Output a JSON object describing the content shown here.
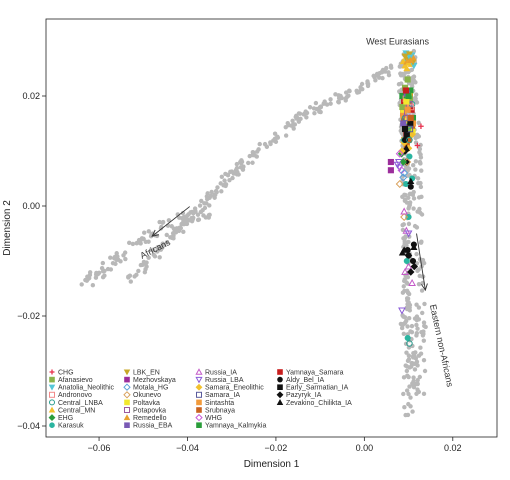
{
  "chart_data": {
    "type": "scatter",
    "xlabel": "Dimension 1",
    "ylabel": "Dimension 2",
    "xlim": [
      -0.072,
      0.03
    ],
    "ylim": [
      -0.042,
      0.034
    ],
    "xticks": [
      -0.06,
      -0.04,
      -0.02,
      0.0,
      0.02
    ],
    "xtick_labels": [
      "−0.06",
      "−0.04",
      "−0.02",
      "0.00",
      "0.02"
    ],
    "yticks": [
      -0.04,
      -0.02,
      0.0,
      0.02
    ],
    "ytick_labels": [
      "−0.04",
      "−0.02",
      "0.00",
      "0.02"
    ],
    "grid": false,
    "legend_position": "bottom-left",
    "annotations": [
      {
        "text": "West Eurasians",
        "x": 0.0075,
        "y": 0.0294
      },
      {
        "text": "Africans",
        "x": -0.047,
        "y": -0.0083,
        "rotate": -27
      },
      {
        "text": "Eastern non-Africans",
        "x": 0.0168,
        "y": -0.0255,
        "rotate": 78
      }
    ],
    "arrows": [
      {
        "from": [
          -0.0395,
          -0.0001
        ],
        "to": [
          -0.048,
          -0.0055
        ]
      },
      {
        "from": [
          0.0118,
          -0.005
        ],
        "to": [
          0.0138,
          -0.0153
        ]
      }
    ],
    "background_series": {
      "name": "",
      "color": "#b8b8b8",
      "segments": [
        {
          "from": [
            -0.053,
            -0.0135
          ],
          "to": [
            -0.04,
            -0.0025
          ],
          "n": 55,
          "jitter": 0.0009
        },
        {
          "from": [
            -0.04,
            -0.0025
          ],
          "to": [
            -0.03,
            0.0055
          ],
          "n": 45,
          "jitter": 0.001
        },
        {
          "from": [
            -0.03,
            0.0055
          ],
          "to": [
            -0.015,
            0.016
          ],
          "n": 55,
          "jitter": 0.001
        },
        {
          "from": [
            -0.015,
            0.016
          ],
          "to": [
            0.0,
            0.022
          ],
          "n": 50,
          "jitter": 0.001
        },
        {
          "from": [
            0.0,
            0.022
          ],
          "to": [
            0.008,
            0.026
          ],
          "n": 25,
          "jitter": 0.0008
        },
        {
          "from": [
            -0.064,
            -0.0145
          ],
          "to": [
            -0.045,
            -0.003
          ],
          "n": 60,
          "jitter": 0.0011
        },
        {
          "from": [
            -0.045,
            -0.003
          ],
          "to": [
            -0.034,
            -0.001
          ],
          "n": 25,
          "jitter": 0.0012
        },
        {
          "from": [
            0.0085,
            0.027
          ],
          "to": [
            0.0095,
            0.001
          ],
          "n": 90,
          "jitter": 0.0009
        },
        {
          "from": [
            0.0095,
            0.001
          ],
          "to": [
            0.0095,
            -0.02
          ],
          "n": 55,
          "jitter": 0.0009
        },
        {
          "from": [
            0.0095,
            -0.02
          ],
          "to": [
            0.012,
            -0.034
          ],
          "n": 45,
          "jitter": 0.0009
        },
        {
          "from": [
            0.009,
            -0.02
          ],
          "to": [
            0.01,
            -0.038
          ],
          "n": 25,
          "jitter": 0.001
        },
        {
          "from": [
            0.0105,
            0.028
          ],
          "to": [
            0.012,
            0.008
          ],
          "n": 60,
          "jitter": 0.001
        },
        {
          "from": [
            0.012,
            0.008
          ],
          "to": [
            0.013,
            -0.034
          ],
          "n": 70,
          "jitter": 0.0012
        }
      ]
    },
    "legend": [
      {
        "label": "CHG",
        "marker": "plus",
        "color": "#e8334f",
        "x": 0.012,
        "y": 0.011
      },
      {
        "label": "Afanasievo",
        "marker": "square",
        "color": "#8ab34a",
        "x": 0.0098,
        "y": 0.023
      },
      {
        "label": "Anatolia_Neolithic",
        "marker": "triangle-down",
        "color": "#56c7d8",
        "x": 0.0103,
        "y": 0.027
      },
      {
        "label": "Andronovo",
        "marker": "square-open",
        "color": "#f28a8a",
        "x": 0.0105,
        "y": 0.018
      },
      {
        "label": "Central_LNBA",
        "marker": "circle-open",
        "color": "#2a9d8f",
        "x": 0.0102,
        "y": 0.012
      },
      {
        "label": "Central_MN",
        "marker": "triangle",
        "color": "#f2c12e",
        "x": 0.01,
        "y": 0.026
      },
      {
        "label": "EHG",
        "marker": "diamond",
        "color": "#2a9d3a",
        "x": 0.0088,
        "y": 0.008
      },
      {
        "label": "Karasuk",
        "marker": "circle",
        "color": "#2bb5a0",
        "x": 0.0096,
        "y": -0.01
      },
      {
        "label": "LBK_EN",
        "marker": "triangle-down",
        "color": "#c8a828",
        "x": 0.0092,
        "y": 0.0272
      },
      {
        "label": "Mezhovskaya",
        "marker": "square",
        "color": "#9b2d9b",
        "x": 0.006,
        "y": 0.0065
      },
      {
        "label": "Motala_HG",
        "marker": "diamond-open",
        "color": "#5aa0d8",
        "x": 0.009,
        "y": 0.006
      },
      {
        "label": "Okunevo",
        "marker": "diamond-open",
        "color": "#d8a05a",
        "x": 0.008,
        "y": 0.004
      },
      {
        "label": "Poltavka",
        "marker": "square",
        "color": "#f2e82e",
        "x": 0.0095,
        "y": 0.019
      },
      {
        "label": "Potapovka",
        "marker": "square-open",
        "color": "#9b5aa0",
        "x": 0.0097,
        "y": 0.017
      },
      {
        "label": "Remedello",
        "marker": "triangle",
        "color": "#e8a030",
        "x": 0.0104,
        "y": 0.0265
      },
      {
        "label": "Russia_EBA",
        "marker": "square",
        "color": "#7a5ab4",
        "x": 0.0088,
        "y": 0.015
      },
      {
        "label": "Russia_IA",
        "marker": "triangle-open",
        "color": "#c45ac8",
        "x": 0.009,
        "y": -0.001
      },
      {
        "label": "Russia_LBA",
        "marker": "triangle-down-open",
        "color": "#8a5ad8",
        "x": 0.0075,
        "y": 0.0075
      },
      {
        "label": "Samara_Eneolithic",
        "marker": "diamond",
        "color": "#f2c12e",
        "x": 0.0085,
        "y": 0.01
      },
      {
        "label": "Samara_IA",
        "marker": "square-open",
        "color": "#5a5a9b",
        "x": 0.0103,
        "y": 0.014
      },
      {
        "label": "Sintashta",
        "marker": "square",
        "color": "#f29a3a",
        "x": 0.0098,
        "y": 0.0175
      },
      {
        "label": "Srubnaya",
        "marker": "square",
        "color": "#c8621e",
        "x": 0.0105,
        "y": 0.016
      },
      {
        "label": "WHG",
        "marker": "diamond-open",
        "color": "#c85ad8",
        "x": 0.008,
        "y": 0.0095
      },
      {
        "label": "Yamnaya_Kalmykia",
        "marker": "square",
        "color": "#2a9d3a",
        "x": 0.01,
        "y": 0.02
      },
      {
        "label": "Yamnaya_Samara",
        "marker": "square",
        "color": "#c81e1e",
        "x": 0.0094,
        "y": 0.021
      },
      {
        "label": "Aldy_Bel_IA",
        "marker": "circle",
        "color": "#111111",
        "x": 0.01,
        "y": -0.009
      },
      {
        "label": "Early_Sarmatian_IA",
        "marker": "square",
        "color": "#111111",
        "x": 0.0092,
        "y": 0.014
      },
      {
        "label": "Pazyryk_IA",
        "marker": "diamond",
        "color": "#111111",
        "x": 0.0105,
        "y": -0.012
      },
      {
        "label": "Zevakino_Chilikta_IA",
        "marker": "triangle",
        "color": "#111111",
        "x": 0.009,
        "y": -0.008
      }
    ],
    "extra_points": [
      {
        "group": "Yamnaya_Samara",
        "x": [
          0.009,
          0.0097,
          0.0103,
          0.0088,
          0.0095,
          0.0107
        ],
        "y": [
          0.019,
          0.015,
          0.02,
          0.017,
          0.013,
          0.0175
        ]
      },
      {
        "group": "Yamnaya_Kalmykia",
        "x": [
          0.0092,
          0.0104,
          0.011,
          0.0086
        ],
        "y": [
          0.018,
          0.021,
          0.016,
          0.02
        ]
      },
      {
        "group": "Srubnaya",
        "x": [
          0.0094,
          0.01,
          0.009,
          0.0108,
          0.0096,
          0.0102
        ],
        "y": [
          0.014,
          0.012,
          0.016,
          0.0145,
          0.011,
          0.019
        ]
      },
      {
        "group": "Sintashta",
        "x": [
          0.0088,
          0.0095,
          0.011,
          0.009
        ],
        "y": [
          0.0165,
          0.0185,
          0.015,
          0.012
        ]
      },
      {
        "group": "Poltavka",
        "x": [
          0.0088,
          0.0102,
          0.0098,
          0.0109
        ],
        "y": [
          0.0175,
          0.02,
          0.0155,
          0.0135
        ]
      },
      {
        "group": "Afanasievo",
        "x": [
          0.0092,
          0.0103,
          0.0086,
          0.0099
        ],
        "y": [
          0.0215,
          0.0195,
          0.018,
          0.014
        ]
      },
      {
        "group": "Central_MN",
        "x": [
          0.0092,
          0.0098,
          0.0106,
          0.0096,
          0.011,
          0.0088
        ],
        "y": [
          0.0255,
          0.0272,
          0.0258,
          0.025,
          0.0268,
          0.0263
        ]
      },
      {
        "group": "Anatolia_Neolithic",
        "x": [
          0.0098,
          0.0108,
          0.0094,
          0.0112
        ],
        "y": [
          0.0262,
          0.0274,
          0.0278,
          0.0255
        ]
      },
      {
        "group": "LBK_EN",
        "x": [
          0.0102,
          0.0097,
          0.011
        ],
        "y": [
          0.0276,
          0.0266,
          0.0262
        ]
      },
      {
        "group": "Remedello",
        "x": [
          0.0096,
          0.011
        ],
        "y": [
          0.0262,
          0.027
        ]
      },
      {
        "group": "EHG",
        "x": [
          0.0084,
          0.009,
          0.0102
        ],
        "y": [
          0.0095,
          0.012,
          0.013
        ]
      },
      {
        "group": "Samara_Eneolithic",
        "x": [
          0.009,
          0.01,
          0.0108
        ],
        "y": [
          0.0115,
          0.0105,
          0.013
        ]
      },
      {
        "group": "Karasuk",
        "x": [
          0.009,
          0.0102,
          0.0094,
          0.01,
          0.0108,
          0.0098
        ],
        "y": [
          0.012,
          0.009,
          0.004,
          -0.002,
          0.005,
          -0.024
        ]
      },
      {
        "group": "Central_LNBA",
        "x": [
          0.0092,
          0.01,
          0.0108
        ],
        "y": [
          0.016,
          0.0145,
          0.0185
        ]
      },
      {
        "group": "Andronovo",
        "x": [
          0.0094,
          0.0102
        ],
        "y": [
          0.0195,
          0.016
        ]
      },
      {
        "group": "Russia_EBA",
        "x": [
          0.0096
        ],
        "y": [
          0.0205
        ]
      },
      {
        "group": "Russia_IA",
        "x": [
          0.0095,
          0.01,
          0.0092,
          0.0108
        ],
        "y": [
          -0.0045,
          -0.011,
          -0.012,
          -0.014
        ]
      },
      {
        "group": "Russia_LBA",
        "x": [
          0.008,
          0.01,
          0.0085,
          0.0078
        ],
        "y": [
          0.007,
          -0.005,
          -0.019,
          0.008
        ]
      },
      {
        "group": "Aldy_Bel_IA",
        "x": [
          0.0092,
          0.0105,
          0.0112,
          0.0098,
          0.011
        ],
        "y": [
          0.012,
          0.0035,
          -0.007,
          -0.008,
          -0.01
        ]
      },
      {
        "group": "Early_Sarmatian_IA",
        "x": [
          0.0096,
          0.0104
        ],
        "y": [
          0.013,
          0.015
        ]
      },
      {
        "group": "Pazyryk_IA",
        "x": [
          0.0092,
          0.01,
          0.0113,
          0.0095
        ],
        "y": [
          0.01,
          -0.009,
          -0.011,
          0.008
        ]
      },
      {
        "group": "Zevakino_Chilikta_IA",
        "x": [
          0.0095,
          0.0105,
          0.0112,
          0.0086
        ],
        "y": [
          0.0105,
          0.0045,
          -0.0075,
          -0.0085
        ]
      },
      {
        "group": "Mezhovskaya",
        "x": [
          0.006
        ],
        "y": [
          0.008
        ]
      },
      {
        "group": "Okunevo",
        "x": [
          0.009,
          0.0097
        ],
        "y": [
          -0.002,
          0.008
        ]
      },
      {
        "group": "WHG",
        "x": [
          0.0084
        ],
        "y": [
          0.0065
        ]
      },
      {
        "group": "Motala_HG",
        "x": [
          0.0088
        ],
        "y": [
          0.0052
        ]
      },
      {
        "group": "CHG",
        "x": [
          0.0128
        ],
        "y": [
          0.0145
        ]
      },
      {
        "group": "Samara_IA",
        "x": [
          0.0096
        ],
        "y": [
          0.016
        ]
      },
      {
        "group": "Potapovka",
        "x": [
          0.0101
        ],
        "y": [
          0.0185
        ]
      },
      {
        "group": "Central_LNBA",
        "x": [
          0.0102
        ],
        "y": [
          -0.025
        ]
      }
    ]
  }
}
